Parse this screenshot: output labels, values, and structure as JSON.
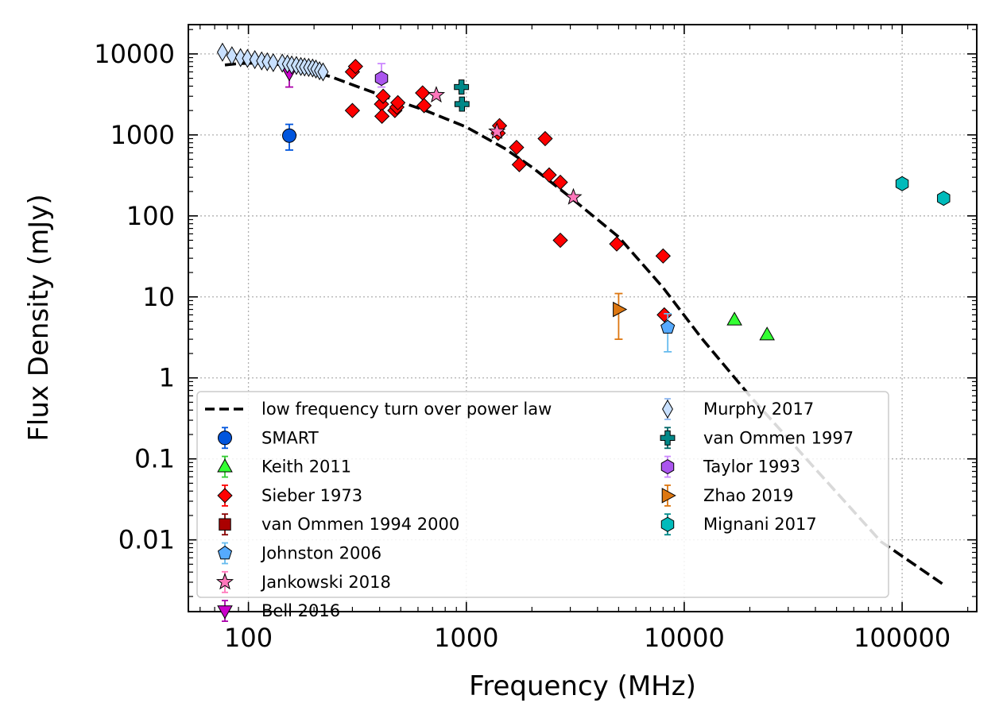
{
  "chart_data": {
    "type": "scatter",
    "xlabel": "Frequency (MHz)",
    "ylabel": "Flux Density (mJy)",
    "x_scale": "log",
    "y_scale": "log",
    "xlim": [
      53,
      220000
    ],
    "ylim": [
      0.0013,
      23000
    ],
    "grid": true,
    "legend_position": "lower-left",
    "x_ticks": [
      {
        "value": 100,
        "label": "100"
      },
      {
        "value": 1000,
        "label": "1000"
      },
      {
        "value": 10000,
        "label": "10000"
      },
      {
        "value": 100000,
        "label": "100000"
      }
    ],
    "y_ticks": [
      {
        "value": 10000,
        "label": "10000"
      },
      {
        "value": 1000,
        "label": "1000"
      },
      {
        "value": 100,
        "label": "100"
      },
      {
        "value": 10,
        "label": "10"
      },
      {
        "value": 1,
        "label": "1"
      },
      {
        "value": 0.1,
        "label": "0.1"
      },
      {
        "value": 0.01,
        "label": "0.01"
      }
    ],
    "model": {
      "name": "low frequency turn over power law",
      "color": "#000000",
      "points": [
        [
          78,
          7300
        ],
        [
          90,
          7600
        ],
        [
          110,
          7700
        ],
        [
          140,
          7400
        ],
        [
          180,
          6600
        ],
        [
          240,
          5200
        ],
        [
          320,
          3900
        ],
        [
          450,
          2800
        ],
        [
          650,
          2000
        ],
        [
          1000,
          1250
        ],
        [
          1500,
          680
        ],
        [
          2000,
          400
        ],
        [
          3000,
          170
        ],
        [
          5000,
          55
        ],
        [
          8000,
          13
        ],
        [
          12000,
          3.1
        ],
        [
          20000,
          0.6
        ],
        [
          40000,
          0.075
        ],
        [
          80000,
          0.0095
        ],
        [
          155000,
          0.0028
        ]
      ]
    },
    "series": [
      {
        "name": "SMART",
        "marker": "circle",
        "color": "#0055dd",
        "errcolor": "#0055dd",
        "points": [
          {
            "x": 154,
            "y": 980,
            "lo": 650,
            "hi": 1350
          }
        ]
      },
      {
        "name": "Keith 2011",
        "marker": "triangle-up",
        "color": "#33ff33",
        "errcolor": "#33cc33",
        "points": [
          {
            "x": 17000,
            "y": 5.2
          },
          {
            "x": 24000,
            "y": 3.4
          }
        ]
      },
      {
        "name": "Sieber 1973",
        "marker": "diamond",
        "color": "#ff0000",
        "errcolor": "#ff0000",
        "points": [
          {
            "x": 300,
            "y": 2000
          },
          {
            "x": 300,
            "y": 6000
          },
          {
            "x": 310,
            "y": 7000
          },
          {
            "x": 408,
            "y": 2400
          },
          {
            "x": 410,
            "y": 1700
          },
          {
            "x": 415,
            "y": 3000
          },
          {
            "x": 470,
            "y": 2000
          },
          {
            "x": 480,
            "y": 2200
          },
          {
            "x": 485,
            "y": 2500
          },
          {
            "x": 630,
            "y": 3300
          },
          {
            "x": 640,
            "y": 2300
          },
          {
            "x": 1400,
            "y": 1050
          },
          {
            "x": 1420,
            "y": 1300
          },
          {
            "x": 1700,
            "y": 700
          },
          {
            "x": 1750,
            "y": 430
          },
          {
            "x": 2300,
            "y": 900
          },
          {
            "x": 2400,
            "y": 320
          },
          {
            "x": 2700,
            "y": 50
          },
          {
            "x": 2700,
            "y": 260
          },
          {
            "x": 4900,
            "y": 45
          },
          {
            "x": 8000,
            "y": 32
          },
          {
            "x": 8100,
            "y": 6
          }
        ]
      },
      {
        "name": "van Ommen 1994 2000",
        "marker": "square",
        "color": "#aa0000",
        "errcolor": "#880000",
        "points": []
      },
      {
        "name": "Johnston 2006",
        "marker": "pentagon",
        "color": "#55aaff",
        "errcolor": "#66bbee",
        "points": [
          {
            "x": 8400,
            "y": 4.2,
            "lo": 2.1,
            "hi": 6.2
          }
        ]
      },
      {
        "name": "Jankowski 2018",
        "marker": "star",
        "color": "#ff77bb",
        "errcolor": "#ff77bb",
        "points": [
          {
            "x": 728,
            "y": 3100
          },
          {
            "x": 1382,
            "y": 1100
          },
          {
            "x": 3100,
            "y": 170
          }
        ]
      },
      {
        "name": "Bell 2016",
        "marker": "triangle-down",
        "color": "#cc00cc",
        "errcolor": "#aa00aa",
        "points": [
          {
            "x": 154,
            "y": 5800,
            "lo": 3900,
            "hi": 8000
          }
        ]
      },
      {
        "name": "Murphy 2017",
        "marker": "thin-diamond",
        "color": "#c8e0ff",
        "errcolor": "#8fb8f0",
        "points": [
          {
            "x": 76,
            "y": 10500
          },
          {
            "x": 84,
            "y": 9500
          },
          {
            "x": 92,
            "y": 9000
          },
          {
            "x": 99,
            "y": 8800
          },
          {
            "x": 107,
            "y": 8500
          },
          {
            "x": 115,
            "y": 8200
          },
          {
            "x": 122,
            "y": 8000
          },
          {
            "x": 130,
            "y": 7800
          },
          {
            "x": 143,
            "y": 7700
          },
          {
            "x": 151,
            "y": 7500
          },
          {
            "x": 158,
            "y": 7300
          },
          {
            "x": 166,
            "y": 7200
          },
          {
            "x": 174,
            "y": 7000
          },
          {
            "x": 181,
            "y": 6900
          },
          {
            "x": 189,
            "y": 6800
          },
          {
            "x": 197,
            "y": 6700
          },
          {
            "x": 204,
            "y": 6500
          },
          {
            "x": 212,
            "y": 6200
          },
          {
            "x": 220,
            "y": 6000
          }
        ]
      },
      {
        "name": "van Ommen 1997",
        "marker": "plus",
        "color": "#008888",
        "errcolor": "#006666",
        "points": [
          {
            "x": 950,
            "y": 3900
          },
          {
            "x": 955,
            "y": 2400
          }
        ]
      },
      {
        "name": "Taylor 1993",
        "marker": "hexagon",
        "color": "#aa55ee",
        "errcolor": "#cc88ff",
        "points": [
          {
            "x": 408,
            "y": 5000,
            "lo": 3900,
            "hi": 7600
          }
        ]
      },
      {
        "name": "Zhao 2019",
        "marker": "triangle-right",
        "color": "#dd7711",
        "errcolor": "#dd7711",
        "points": [
          {
            "x": 5000,
            "y": 7,
            "lo": 3,
            "hi": 11
          }
        ]
      },
      {
        "name": "Mignani 2017",
        "marker": "hexagon",
        "color": "#00bbbb",
        "errcolor": "#008888",
        "points": [
          {
            "x": 100000,
            "y": 250
          },
          {
            "x": 155000,
            "y": 165
          }
        ]
      }
    ]
  }
}
